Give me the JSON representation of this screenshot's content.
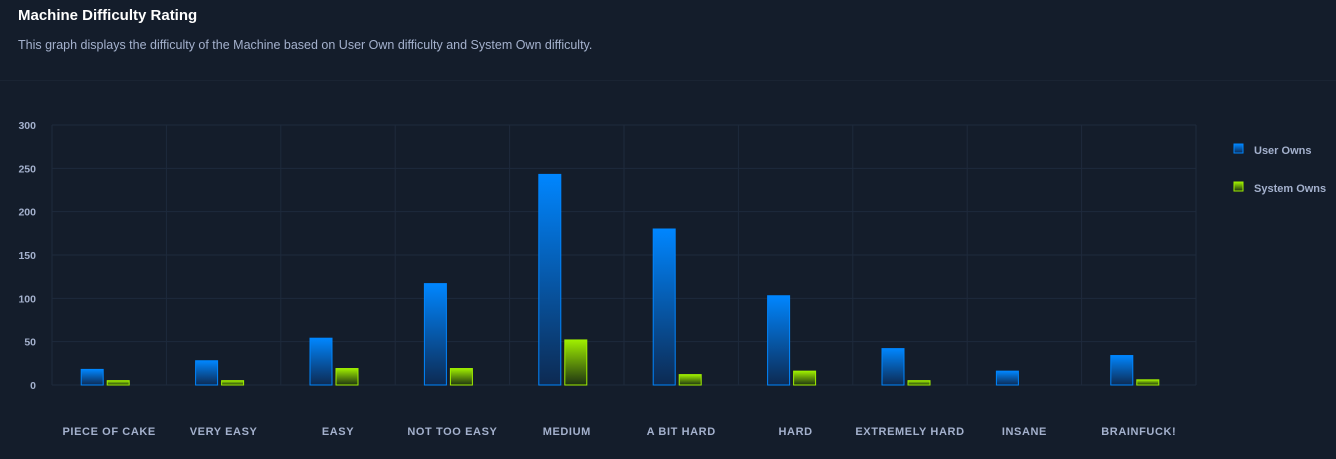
{
  "header": {
    "title": "Machine Difficulty Rating",
    "subtitle": "This graph displays the difficulty of the Machine based on User Own difficulty and System Own difficulty."
  },
  "colors": {
    "user_top": "#0086ff",
    "user_bottom": "#0d2a52",
    "system_top": "#9fef00",
    "system_bottom": "#1e3312",
    "grid": "#1e2a3c",
    "background": "#141d2b"
  },
  "chart_data": {
    "type": "bar",
    "categories": [
      "PIECE OF CAKE",
      "VERY EASY",
      "EASY",
      "NOT TOO EASY",
      "MEDIUM",
      "A BIT HARD",
      "HARD",
      "EXTREMELY HARD",
      "INSANE",
      "BRAINFUCK!"
    ],
    "series": [
      {
        "name": "User Owns",
        "values": [
          18,
          28,
          54,
          117,
          243,
          180,
          103,
          42,
          16,
          34
        ]
      },
      {
        "name": "System Owns",
        "values": [
          5,
          5,
          19,
          19,
          52,
          12,
          16,
          5,
          0,
          6
        ]
      }
    ],
    "yticks": [
      0,
      50,
      100,
      150,
      200,
      250,
      300
    ],
    "ylim": [
      0,
      300
    ],
    "grid": true,
    "legend_position": "right"
  }
}
